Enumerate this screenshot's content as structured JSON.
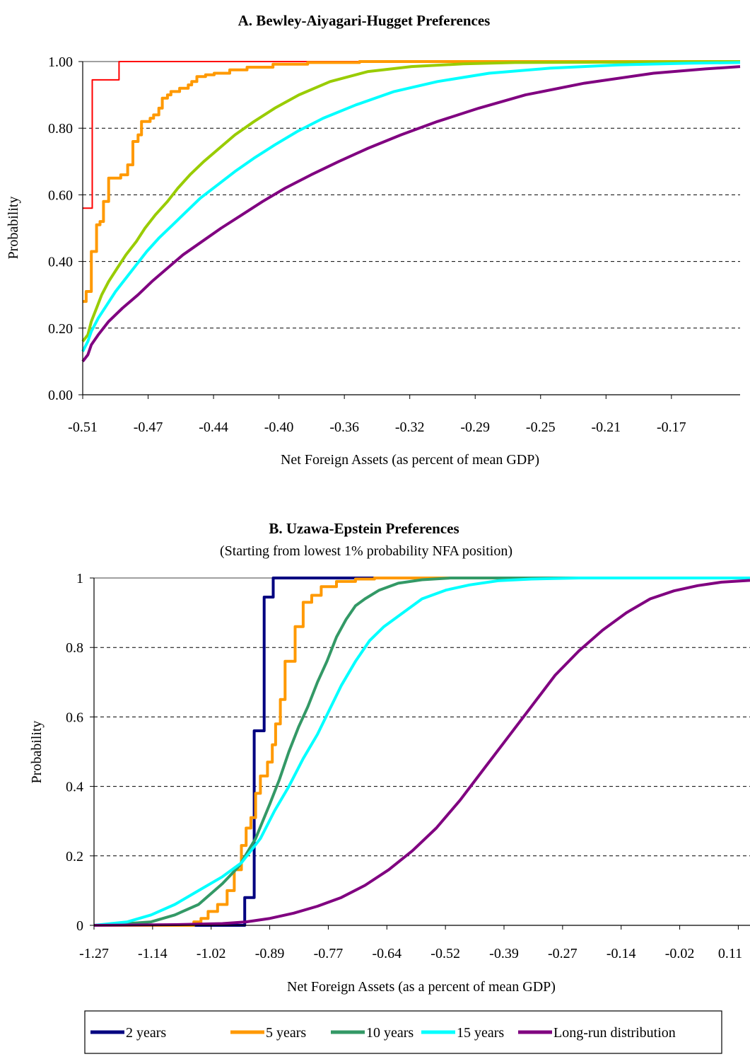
{
  "charts": [
    {
      "title": "A. Bewley-Aiyagari-Hugget Preferences",
      "subtitle": "",
      "xlabel": "Net Foreign Assets (as percent of mean GDP)",
      "ylabel": "Probability",
      "xticks": [
        "-0.51",
        "-0.47",
        "-0.44",
        "-0.40",
        "-0.36",
        "-0.32",
        "-0.29",
        "-0.25",
        "-0.21",
        "-0.17"
      ],
      "yticks": [
        "0.00",
        "0.20",
        "0.40",
        "0.60",
        "0.80",
        "1.00"
      ]
    },
    {
      "title": "B. Uzawa-Epstein Preferences",
      "subtitle": "(Starting from lowest 1% probability NFA position)",
      "xlabel": "Net Foreign Assets (as a percent of mean GDP)",
      "ylabel": "Probability",
      "xticks": [
        "-1.27",
        "-1.14",
        "-1.02",
        "-0.89",
        "-0.77",
        "-0.64",
        "-0.52",
        "-0.39",
        "-0.27",
        "-0.14",
        "-0.02",
        "0.11"
      ],
      "yticks": [
        "0",
        "0.2",
        "0.4",
        "0.6",
        "0.8",
        "1"
      ]
    }
  ],
  "legend": [
    {
      "label": "2 years",
      "color": "#000080"
    },
    {
      "label": "5 years",
      "color": "#FF9900"
    },
    {
      "label": "10 years",
      "color": "#339966"
    },
    {
      "label": "15 years",
      "color": "#00FFFF"
    },
    {
      "label": "Long-run distribution",
      "color": "#800080"
    }
  ],
  "chart_data": [
    {
      "type": "line",
      "title": "A. Bewley-Aiyagari-Hugget Preferences",
      "xlabel": "Net Foreign Assets (as percent of mean GDP)",
      "ylabel": "Probability",
      "xlim": [
        -0.51,
        -0.13
      ],
      "ylim": [
        0,
        1
      ],
      "grid": true,
      "series": [
        {
          "color": "#FF0000",
          "step": true,
          "points": [
            [
              -0.51,
              0.56
            ],
            [
              -0.5045,
              0.56
            ],
            [
              -0.5045,
              0.945
            ],
            [
              -0.489,
              0.945
            ],
            [
              -0.489,
              1.0
            ],
            [
              -0.13,
              1.0
            ]
          ]
        },
        {
          "color": "#FF9900",
          "step": true,
          "points": [
            [
              -0.51,
              0.28
            ],
            [
              -0.508,
              0.31
            ],
            [
              -0.505,
              0.43
            ],
            [
              -0.502,
              0.51
            ],
            [
              -0.5,
              0.52
            ],
            [
              -0.498,
              0.58
            ],
            [
              -0.495,
              0.65
            ],
            [
              -0.49,
              0.65
            ],
            [
              -0.488,
              0.66
            ],
            [
              -0.484,
              0.69
            ],
            [
              -0.481,
              0.76
            ],
            [
              -0.478,
              0.78
            ],
            [
              -0.476,
              0.82
            ],
            [
              -0.471,
              0.83
            ],
            [
              -0.469,
              0.84
            ],
            [
              -0.466,
              0.86
            ],
            [
              -0.464,
              0.89
            ],
            [
              -0.461,
              0.9
            ],
            [
              -0.459,
              0.91
            ],
            [
              -0.454,
              0.92
            ],
            [
              -0.449,
              0.93
            ],
            [
              -0.447,
              0.94
            ],
            [
              -0.444,
              0.955
            ],
            [
              -0.439,
              0.96
            ],
            [
              -0.434,
              0.965
            ],
            [
              -0.425,
              0.975
            ],
            [
              -0.415,
              0.983
            ],
            [
              -0.4,
              0.992
            ],
            [
              -0.38,
              0.997
            ],
            [
              -0.35,
              1.0
            ],
            [
              -0.13,
              1.0
            ]
          ]
        },
        {
          "color": "#99CC00",
          "step": false,
          "points": [
            [
              -0.51,
              0.16
            ],
            [
              -0.507,
              0.18
            ],
            [
              -0.505,
              0.22
            ],
            [
              -0.502,
              0.26
            ],
            [
              -0.499,
              0.3
            ],
            [
              -0.495,
              0.34
            ],
            [
              -0.49,
              0.38
            ],
            [
              -0.485,
              0.42
            ],
            [
              -0.479,
              0.46
            ],
            [
              -0.474,
              0.5
            ],
            [
              -0.468,
              0.54
            ],
            [
              -0.461,
              0.58
            ],
            [
              -0.455,
              0.62
            ],
            [
              -0.448,
              0.66
            ],
            [
              -0.44,
              0.7
            ],
            [
              -0.431,
              0.74
            ],
            [
              -0.422,
              0.78
            ],
            [
              -0.411,
              0.82
            ],
            [
              -0.399,
              0.86
            ],
            [
              -0.385,
              0.9
            ],
            [
              -0.367,
              0.94
            ],
            [
              -0.345,
              0.97
            ],
            [
              -0.32,
              0.985
            ],
            [
              -0.29,
              0.993
            ],
            [
              -0.26,
              0.997
            ],
            [
              -0.13,
              1.0
            ]
          ]
        },
        {
          "color": "#00FFFF",
          "step": false,
          "points": [
            [
              -0.51,
              0.13
            ],
            [
              -0.507,
              0.16
            ],
            [
              -0.505,
              0.19
            ],
            [
              -0.501,
              0.23
            ],
            [
              -0.496,
              0.27
            ],
            [
              -0.491,
              0.31
            ],
            [
              -0.485,
              0.35
            ],
            [
              -0.479,
              0.39
            ],
            [
              -0.473,
              0.43
            ],
            [
              -0.466,
              0.47
            ],
            [
              -0.458,
              0.51
            ],
            [
              -0.45,
              0.55
            ],
            [
              -0.442,
              0.59
            ],
            [
              -0.432,
              0.63
            ],
            [
              -0.422,
              0.67
            ],
            [
              -0.411,
              0.71
            ],
            [
              -0.399,
              0.75
            ],
            [
              -0.386,
              0.79
            ],
            [
              -0.371,
              0.83
            ],
            [
              -0.352,
              0.87
            ],
            [
              -0.33,
              0.91
            ],
            [
              -0.305,
              0.94
            ],
            [
              -0.275,
              0.965
            ],
            [
              -0.24,
              0.98
            ],
            [
              -0.2,
              0.99
            ],
            [
              -0.16,
              0.995
            ],
            [
              -0.13,
              0.997
            ]
          ]
        },
        {
          "color": "#800080",
          "step": false,
          "points": [
            [
              -0.51,
              0.1
            ],
            [
              -0.507,
              0.12
            ],
            [
              -0.505,
              0.15
            ],
            [
              -0.501,
              0.18
            ],
            [
              -0.495,
              0.22
            ],
            [
              -0.487,
              0.26
            ],
            [
              -0.478,
              0.3
            ],
            [
              -0.47,
              0.34
            ],
            [
              -0.461,
              0.38
            ],
            [
              -0.452,
              0.42
            ],
            [
              -0.441,
              0.46
            ],
            [
              -0.43,
              0.5
            ],
            [
              -0.418,
              0.54
            ],
            [
              -0.406,
              0.58
            ],
            [
              -0.393,
              0.62
            ],
            [
              -0.378,
              0.66
            ],
            [
              -0.362,
              0.7
            ],
            [
              -0.345,
              0.74
            ],
            [
              -0.326,
              0.78
            ],
            [
              -0.305,
              0.82
            ],
            [
              -0.281,
              0.86
            ],
            [
              -0.254,
              0.9
            ],
            [
              -0.22,
              0.935
            ],
            [
              -0.18,
              0.965
            ],
            [
              -0.15,
              0.978
            ],
            [
              -0.13,
              0.985
            ]
          ]
        }
      ]
    },
    {
      "type": "line",
      "title": "B. Uzawa-Epstein Preferences",
      "subtitle": "(Starting from lowest 1% probability NFA position)",
      "xlabel": "Net Foreign Assets (as a percent of mean GDP)",
      "ylabel": "Probability",
      "xlim": [
        -1.27,
        0.11
      ],
      "ylim": [
        0,
        1
      ],
      "grid": true,
      "legend_position": "bottom",
      "series": [
        {
          "name": "2 years",
          "color": "#000080",
          "step": true,
          "points": [
            [
              -1.27,
              0.0
            ],
            [
              -0.953,
              0.0
            ],
            [
              -0.953,
              0.08
            ],
            [
              -0.933,
              0.08
            ],
            [
              -0.933,
              0.56
            ],
            [
              -0.912,
              0.56
            ],
            [
              -0.912,
              0.945
            ],
            [
              -0.893,
              0.945
            ],
            [
              -0.893,
              1.0
            ],
            [
              0.11,
              1.0
            ]
          ]
        },
        {
          "name": "5 years",
          "color": "#FF9900",
          "step": true,
          "points": [
            [
              -1.27,
              0.0
            ],
            [
              -1.06,
              0.0
            ],
            [
              -1.06,
              0.01
            ],
            [
              -1.045,
              0.02
            ],
            [
              -1.03,
              0.04
            ],
            [
              -1.01,
              0.06
            ],
            [
              -0.99,
              0.1
            ],
            [
              -0.975,
              0.16
            ],
            [
              -0.96,
              0.23
            ],
            [
              -0.95,
              0.28
            ],
            [
              -0.94,
              0.31
            ],
            [
              -0.93,
              0.38
            ],
            [
              -0.92,
              0.43
            ],
            [
              -0.905,
              0.47
            ],
            [
              -0.895,
              0.52
            ],
            [
              -0.888,
              0.58
            ],
            [
              -0.878,
              0.65
            ],
            [
              -0.868,
              0.76
            ],
            [
              -0.856,
              0.76
            ],
            [
              -0.847,
              0.86
            ],
            [
              -0.83,
              0.93
            ],
            [
              -0.812,
              0.95
            ],
            [
              -0.792,
              0.975
            ],
            [
              -0.76,
              0.99
            ],
            [
              -0.72,
              0.997
            ],
            [
              -0.68,
              1.0
            ],
            [
              0.11,
              1.0
            ]
          ]
        },
        {
          "name": "10 years",
          "color": "#339966",
          "step": false,
          "points": [
            [
              -1.27,
              0.0
            ],
            [
              -1.2,
              0.005
            ],
            [
              -1.15,
              0.01
            ],
            [
              -1.1,
              0.03
            ],
            [
              -1.05,
              0.06
            ],
            [
              -1.0,
              0.12
            ],
            [
              -0.965,
              0.17
            ],
            [
              -0.93,
              0.25
            ],
            [
              -0.9,
              0.35
            ],
            [
              -0.88,
              0.42
            ],
            [
              -0.86,
              0.5
            ],
            [
              -0.84,
              0.57
            ],
            [
              -0.82,
              0.63
            ],
            [
              -0.8,
              0.7
            ],
            [
              -0.78,
              0.76
            ],
            [
              -0.76,
              0.83
            ],
            [
              -0.74,
              0.88
            ],
            [
              -0.72,
              0.92
            ],
            [
              -0.7,
              0.94
            ],
            [
              -0.67,
              0.965
            ],
            [
              -0.63,
              0.985
            ],
            [
              -0.58,
              0.995
            ],
            [
              -0.52,
              1.0
            ],
            [
              0.11,
              1.0
            ]
          ]
        },
        {
          "name": "15 years",
          "color": "#00FFFF",
          "step": false,
          "points": [
            [
              -1.27,
              0.0
            ],
            [
              -1.2,
              0.01
            ],
            [
              -1.15,
              0.03
            ],
            [
              -1.1,
              0.06
            ],
            [
              -1.05,
              0.1
            ],
            [
              -1.0,
              0.14
            ],
            [
              -0.96,
              0.18
            ],
            [
              -0.92,
              0.25
            ],
            [
              -0.89,
              0.33
            ],
            [
              -0.86,
              0.4
            ],
            [
              -0.83,
              0.48
            ],
            [
              -0.8,
              0.55
            ],
            [
              -0.775,
              0.62
            ],
            [
              -0.75,
              0.69
            ],
            [
              -0.72,
              0.76
            ],
            [
              -0.69,
              0.82
            ],
            [
              -0.66,
              0.86
            ],
            [
              -0.62,
              0.9
            ],
            [
              -0.58,
              0.94
            ],
            [
              -0.53,
              0.965
            ],
            [
              -0.48,
              0.98
            ],
            [
              -0.42,
              0.992
            ],
            [
              -0.35,
              0.997
            ],
            [
              -0.25,
              1.0
            ],
            [
              0.11,
              1.0
            ]
          ]
        },
        {
          "name": "Long-run distribution",
          "color": "#800080",
          "step": false,
          "points": [
            [
              -1.27,
              0.0
            ],
            [
              -1.1,
              0.002
            ],
            [
              -1.0,
              0.005
            ],
            [
              -0.95,
              0.01
            ],
            [
              -0.9,
              0.02
            ],
            [
              -0.85,
              0.035
            ],
            [
              -0.8,
              0.055
            ],
            [
              -0.75,
              0.08
            ],
            [
              -0.7,
              0.115
            ],
            [
              -0.65,
              0.16
            ],
            [
              -0.6,
              0.215
            ],
            [
              -0.55,
              0.28
            ],
            [
              -0.5,
              0.36
            ],
            [
              -0.45,
              0.45
            ],
            [
              -0.4,
              0.54
            ],
            [
              -0.35,
              0.63
            ],
            [
              -0.3,
              0.72
            ],
            [
              -0.25,
              0.79
            ],
            [
              -0.2,
              0.85
            ],
            [
              -0.15,
              0.9
            ],
            [
              -0.1,
              0.94
            ],
            [
              -0.05,
              0.963
            ],
            [
              0.0,
              0.978
            ],
            [
              0.05,
              0.988
            ],
            [
              0.11,
              0.993
            ]
          ]
        }
      ]
    }
  ]
}
